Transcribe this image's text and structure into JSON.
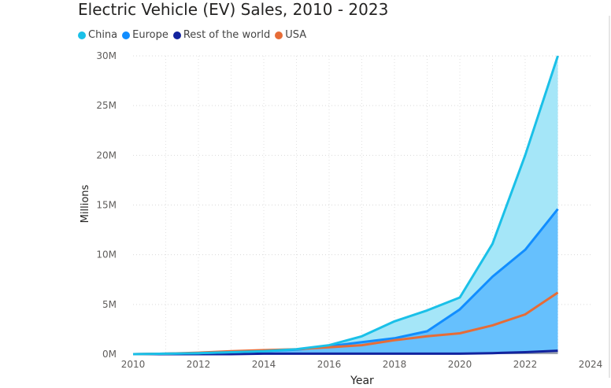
{
  "chart_data": {
    "type": "area",
    "title": "Electric Vehicle (EV) Sales, 2010 - 2023",
    "xlabel": "Year",
    "ylabel": "Millions",
    "x": [
      2010,
      2011,
      2012,
      2013,
      2014,
      2015,
      2016,
      2017,
      2018,
      2019,
      2020,
      2021,
      2022,
      2023
    ],
    "xlim": [
      2010,
      2024
    ],
    "ylim": [
      0,
      30
    ],
    "x_ticks": [
      "2010",
      "2012",
      "2014",
      "2016",
      "2018",
      "2020",
      "2022",
      "2024"
    ],
    "y_ticks": [
      "0M",
      "5M",
      "10M",
      "15M",
      "20M",
      "25M",
      "30M"
    ],
    "grid": true,
    "legend_position": "top-left",
    "series": [
      {
        "name": "China",
        "color": "#1ac0e8",
        "fill": "#a5e6f8",
        "values": [
          0.0,
          0.05,
          0.1,
          0.2,
          0.3,
          0.5,
          0.9,
          1.8,
          3.3,
          4.4,
          5.7,
          11.1,
          20.0,
          30.0
        ]
      },
      {
        "name": "Europe",
        "color": "#118dff",
        "fill": "#66c0fd",
        "values": [
          0.0,
          0.05,
          0.1,
          0.2,
          0.3,
          0.45,
          0.8,
          1.2,
          1.6,
          2.3,
          4.5,
          7.8,
          10.5,
          14.6
        ]
      },
      {
        "name": "Rest of the world",
        "color": "#12239e",
        "fill": "#9ba3b0",
        "values": [
          0.0,
          0.0,
          0.0,
          0.0,
          0.05,
          0.05,
          0.05,
          0.05,
          0.05,
          0.05,
          0.05,
          0.1,
          0.2,
          0.35
        ]
      },
      {
        "name": "USA",
        "color": "#e66c37",
        "fill": "none",
        "values": [
          0.0,
          0.05,
          0.15,
          0.3,
          0.4,
          0.5,
          0.7,
          0.9,
          1.4,
          1.8,
          2.1,
          2.9,
          4.0,
          6.2
        ]
      }
    ]
  }
}
